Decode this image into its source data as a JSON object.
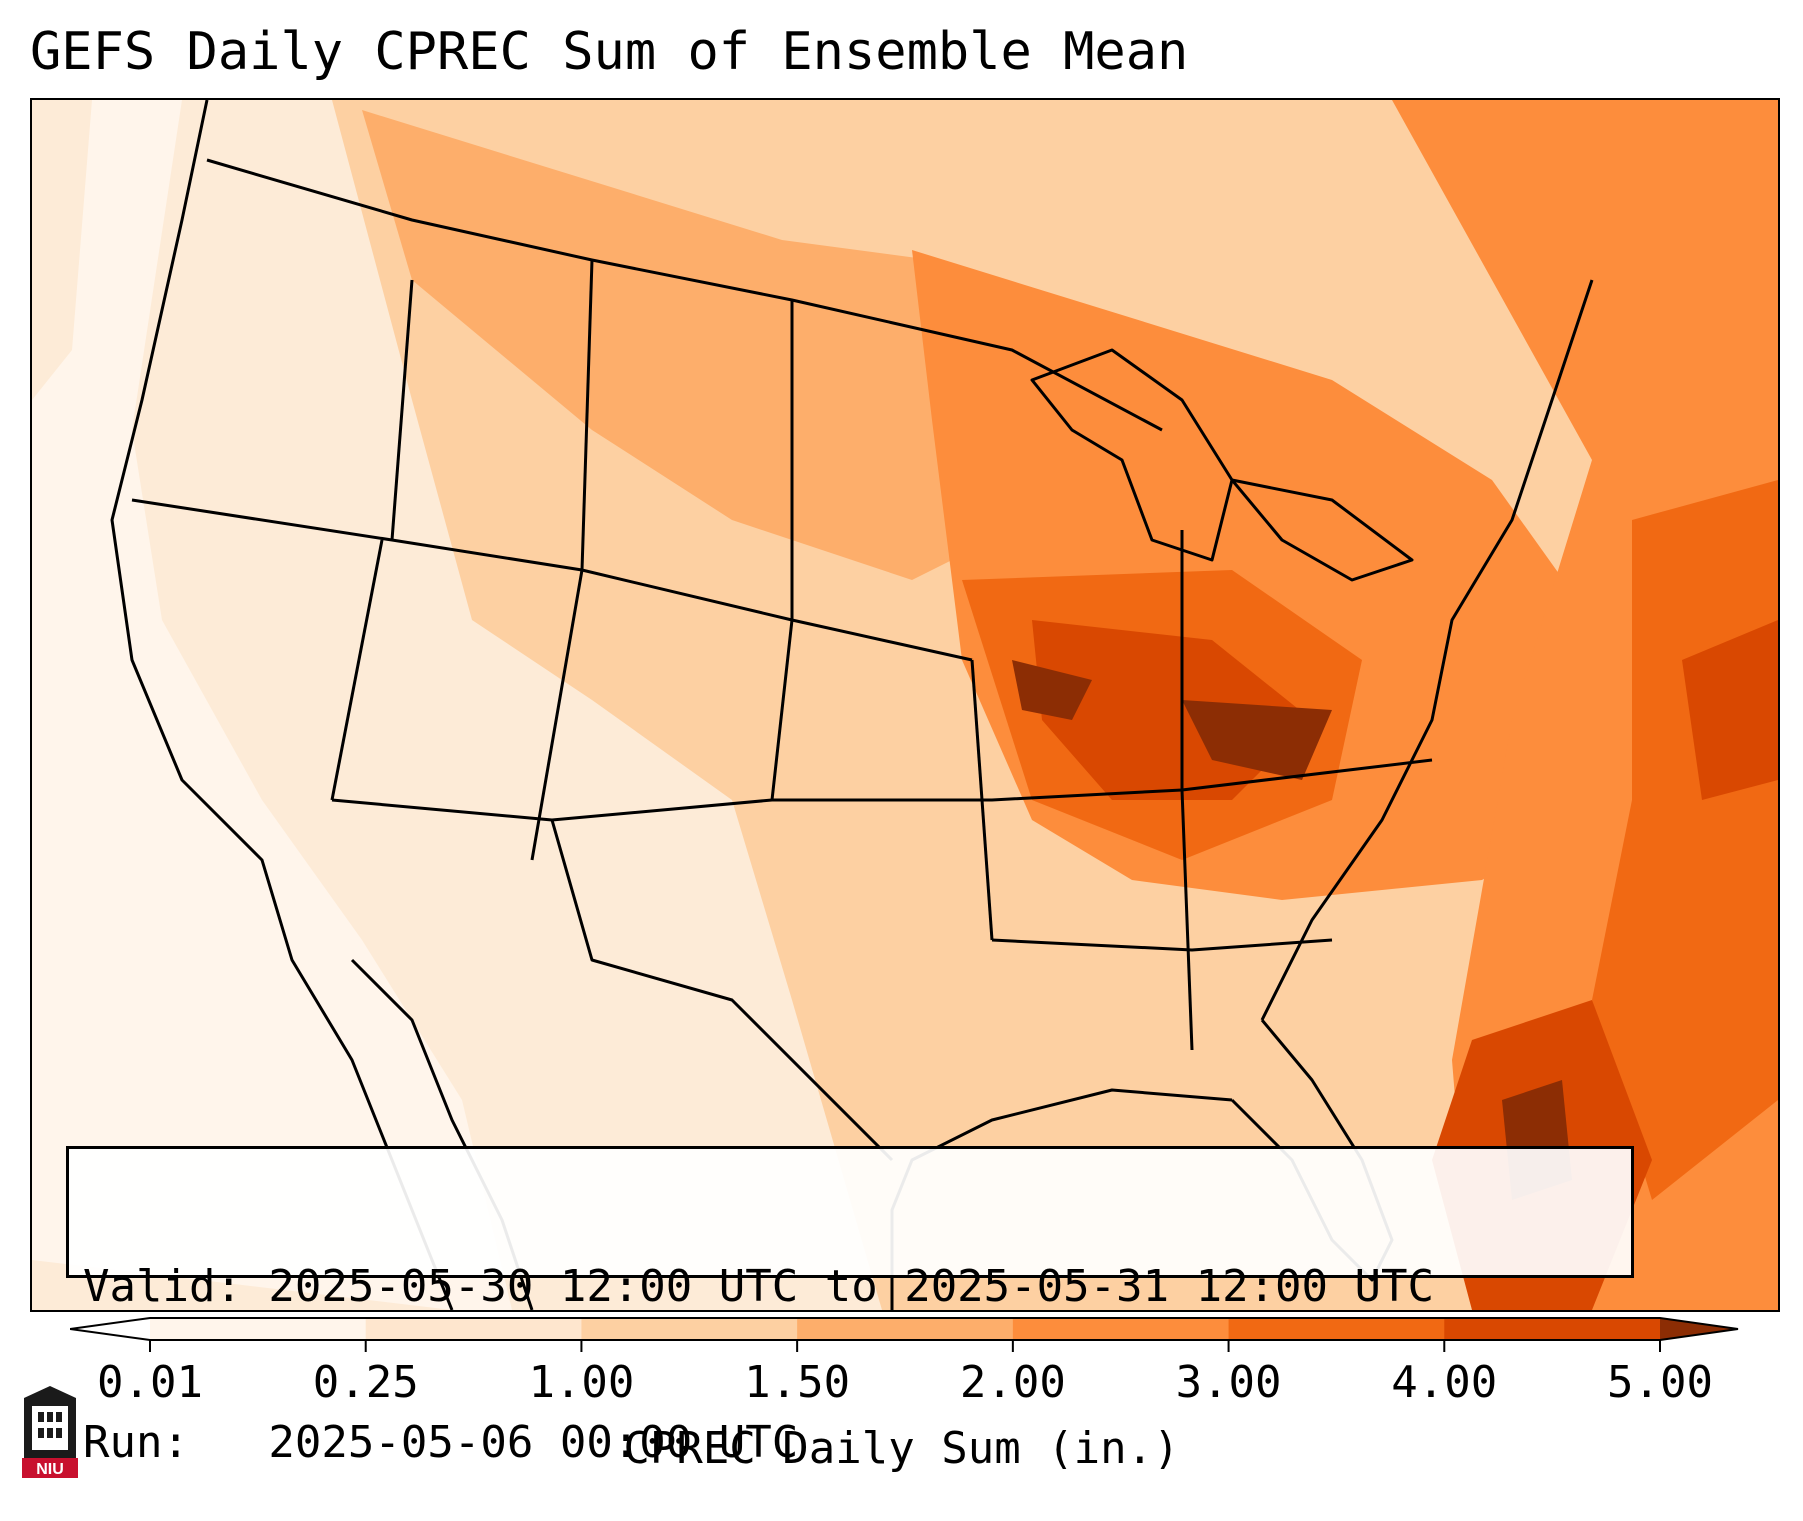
{
  "title": "GEFS Daily CPREC Sum of Ensemble Mean",
  "info": {
    "valid": "Valid: 2025-05-30 12:00 UTC to 2025-05-31 12:00 UTC",
    "run": "Run:   2025-05-06 00:00 UTC"
  },
  "colorbar": {
    "label": "CPREC Daily Sum (in.)",
    "ticks": [
      "0.01",
      "0.25",
      "1.00",
      "1.50",
      "2.00",
      "3.00",
      "4.00",
      "5.00"
    ],
    "colors": [
      "#fff5eb",
      "#fee6ce",
      "#fdd0a2",
      "#fdae6b",
      "#fd8d3c",
      "#f16913",
      "#d94801",
      "#8c2d04"
    ]
  },
  "logo": {
    "text": "NIU"
  },
  "chart_data": {
    "type": "heatmap",
    "title": "GEFS Daily CPREC Sum of Ensemble Mean",
    "colorbar_label": "CPREC Daily Sum (in.)",
    "levels": [
      0.01,
      0.25,
      1.0,
      1.5,
      2.0,
      3.0,
      4.0,
      5.0
    ],
    "extend": "both"
  }
}
